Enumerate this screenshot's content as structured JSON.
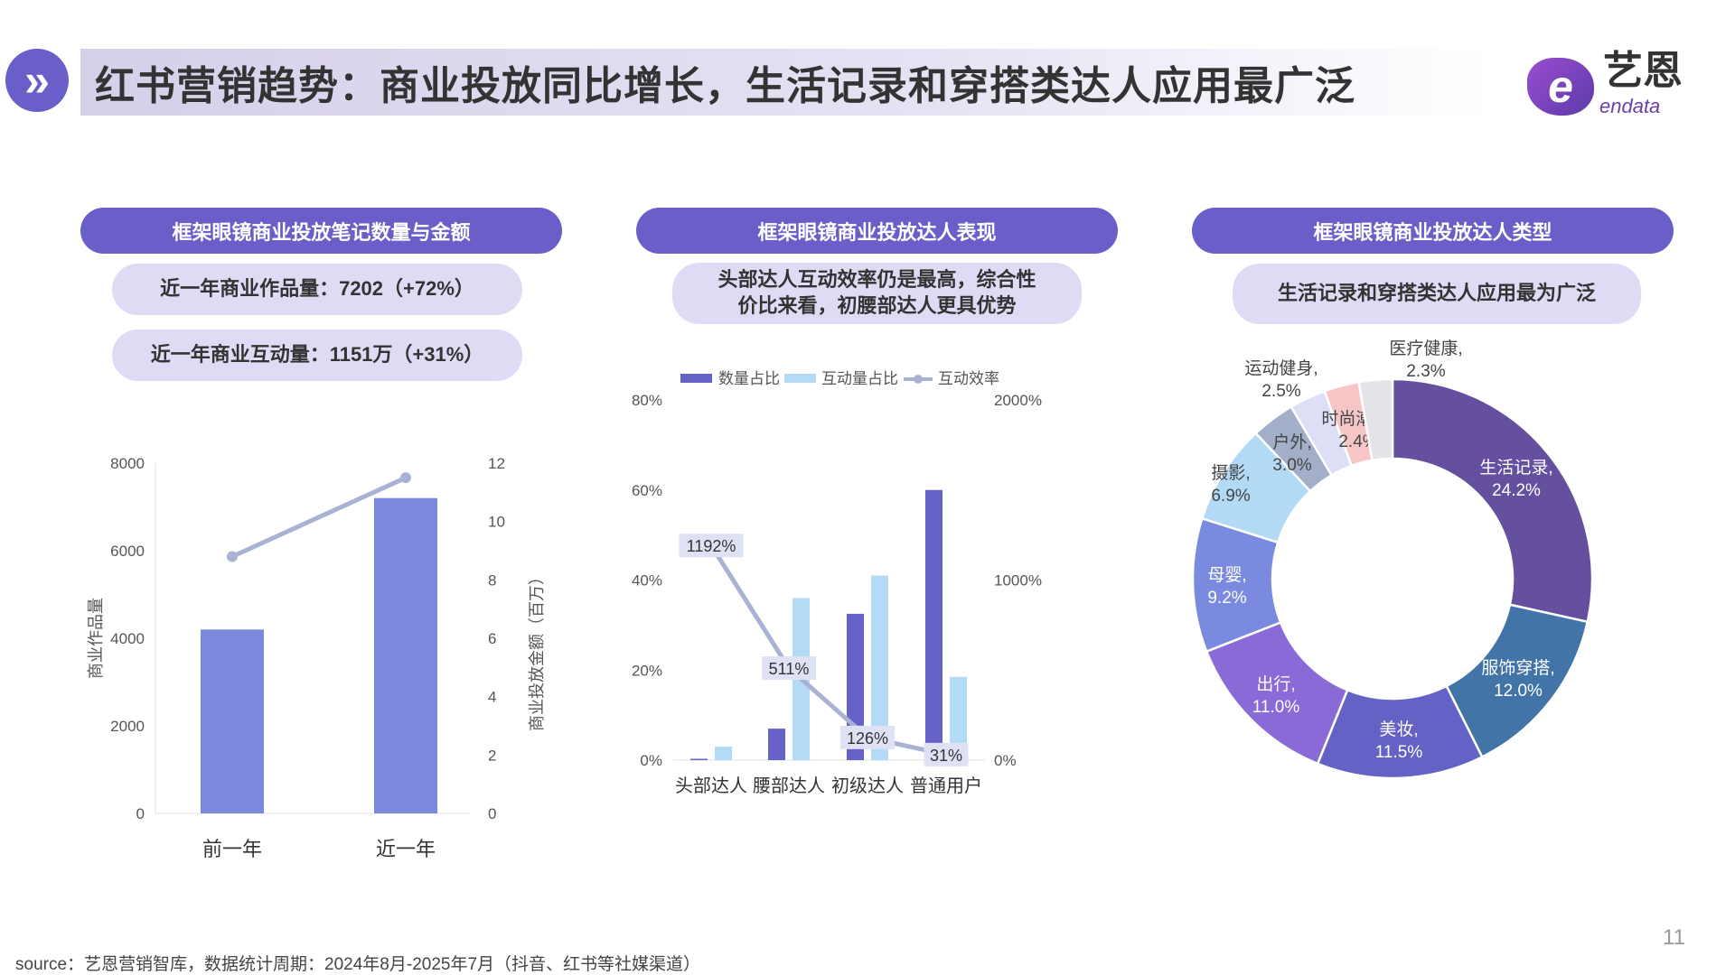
{
  "header": {
    "icon": "double-chevron-right-icon",
    "title": "红书营销趋势：商业投放同比增长，生活记录和穿搭类达人应用最广泛",
    "logo_cn": "艺恩",
    "logo_en": "endata"
  },
  "colors": {
    "accent": "#6a5fc9",
    "pill_bg": "#dedcf4"
  },
  "panels": [
    {
      "title": "框架眼镜商业投放笔记数量与金额",
      "pills": [
        "近一年商业作品量：7202（+72%）",
        "近一年商业互动量：1151万（+31%）"
      ]
    },
    {
      "title": "框架眼镜商业投放达人表现",
      "pills": [
        "头部达人互动效率仍是最高，综合性",
        "价比来看，初腰部达人更具优势"
      ]
    },
    {
      "title": "框架眼镜商业投放达人类型",
      "pills": [
        "生活记录和穿搭类达人应用最为广泛"
      ]
    }
  ],
  "chart_data": [
    {
      "type": "bar",
      "categories": [
        "前一年",
        "近一年"
      ],
      "series": [
        {
          "values": [
            4200,
            7202
          ],
          "axis": "left",
          "color": "#7b89dd",
          "type": "bar"
        },
        {
          "values": [
            8.8,
            11.5
          ],
          "axis": "right",
          "color": "#a9b2d3",
          "type": "line"
        }
      ],
      "ylabel": "商业作品量",
      "y2label": "商业投放金额（百万）",
      "ylim": [
        0,
        8000
      ],
      "yticks": [
        "0",
        "2000",
        "4000",
        "6000",
        "8000"
      ],
      "y2lim": [
        0,
        12
      ],
      "y2ticks": [
        "0",
        "2",
        "4",
        "6",
        "8",
        "10",
        "12"
      ],
      "grid": false
    },
    {
      "type": "bar",
      "categories": [
        "头部达人",
        "腰部达人",
        "初级达人",
        "普通用户"
      ],
      "series": [
        {
          "name": "数量占比",
          "values": [
            0.3,
            7.0,
            32.5,
            60.0
          ],
          "axis": "left",
          "color": "#6762c8",
          "type": "bar"
        },
        {
          "name": "互动量占比",
          "values": [
            3.0,
            36.0,
            41.0,
            18.5
          ],
          "axis": "left",
          "color": "#b3dbf5",
          "type": "bar"
        },
        {
          "name": "互动效率",
          "values": [
            1192,
            511,
            126,
            31
          ],
          "labels": [
            "1192%",
            "511%",
            "126%",
            "31%"
          ],
          "axis": "right",
          "color": "#a9b2d3",
          "type": "line"
        }
      ],
      "ylim": [
        0,
        80
      ],
      "yticks": [
        "0%",
        "20%",
        "40%",
        "60%",
        "80%"
      ],
      "y2lim": [
        0,
        2000
      ],
      "y2ticks": [
        "0%",
        "1000%",
        "2000%"
      ],
      "legend": "top",
      "grid": false
    },
    {
      "type": "pie",
      "donut": true,
      "slices": [
        {
          "label": "生活记录,",
          "pct": "24.2%",
          "value": 24.2,
          "color": "#6550a0",
          "inside": true
        },
        {
          "label": "服饰穿搭,",
          "pct": "12.0%",
          "value": 12.0,
          "color": "#4274a8",
          "inside": true
        },
        {
          "label": "美妆,",
          "pct": "11.5%",
          "value": 11.5,
          "color": "#6462c4",
          "inside": true
        },
        {
          "label": "出行,",
          "pct": "11.0%",
          "value": 11.0,
          "color": "#8a6ad6",
          "inside": true
        },
        {
          "label": "母婴,",
          "pct": "9.2%",
          "value": 9.2,
          "color": "#7a8ade",
          "inside": true
        },
        {
          "label": "摄影,",
          "pct": "6.9%",
          "value": 6.9,
          "color": "#b2daf4",
          "inside": false
        },
        {
          "label": "户外,",
          "pct": "3.0%",
          "value": 3.0,
          "color": "#a3aec9",
          "inside": false
        },
        {
          "label": "运动健身,",
          "pct": "2.5%",
          "value": 2.5,
          "color": "#dcdff6",
          "inside": false
        },
        {
          "label": "时尚潮流,",
          "pct": "2.4%",
          "value": 2.4,
          "color": "#f6c6c6",
          "inside": false
        },
        {
          "label": "医疗健康,",
          "pct": "2.3%",
          "value": 2.3,
          "color": "#e4e4e8",
          "inside": false
        }
      ]
    }
  ],
  "footer": {
    "source": "source：艺恩营销智库，数据统计周期：2024年8月-2025年7月（抖音、红书等社媒渠道）",
    "page": "11"
  }
}
